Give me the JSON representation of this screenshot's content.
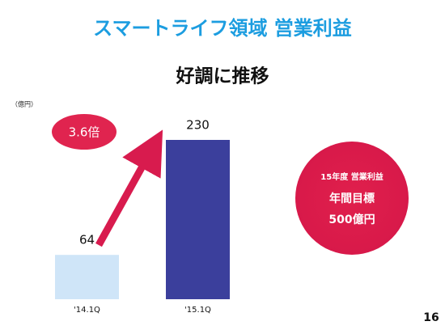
{
  "chart_data": {
    "type": "bar",
    "title": "スマートライフ領域 営業利益",
    "subtitle": "好調に推移",
    "unit": "（億円）",
    "categories": [
      "'14.1Q",
      "'15.1Q"
    ],
    "values": [
      64,
      230
    ],
    "colors": [
      "#cfe5f8",
      "#3b3f9c"
    ],
    "growth_annotation": "3.6倍",
    "target": {
      "heading": "15年度 営業利益",
      "label": "年間目標",
      "value_label": "500億円"
    },
    "page_number": "16"
  }
}
